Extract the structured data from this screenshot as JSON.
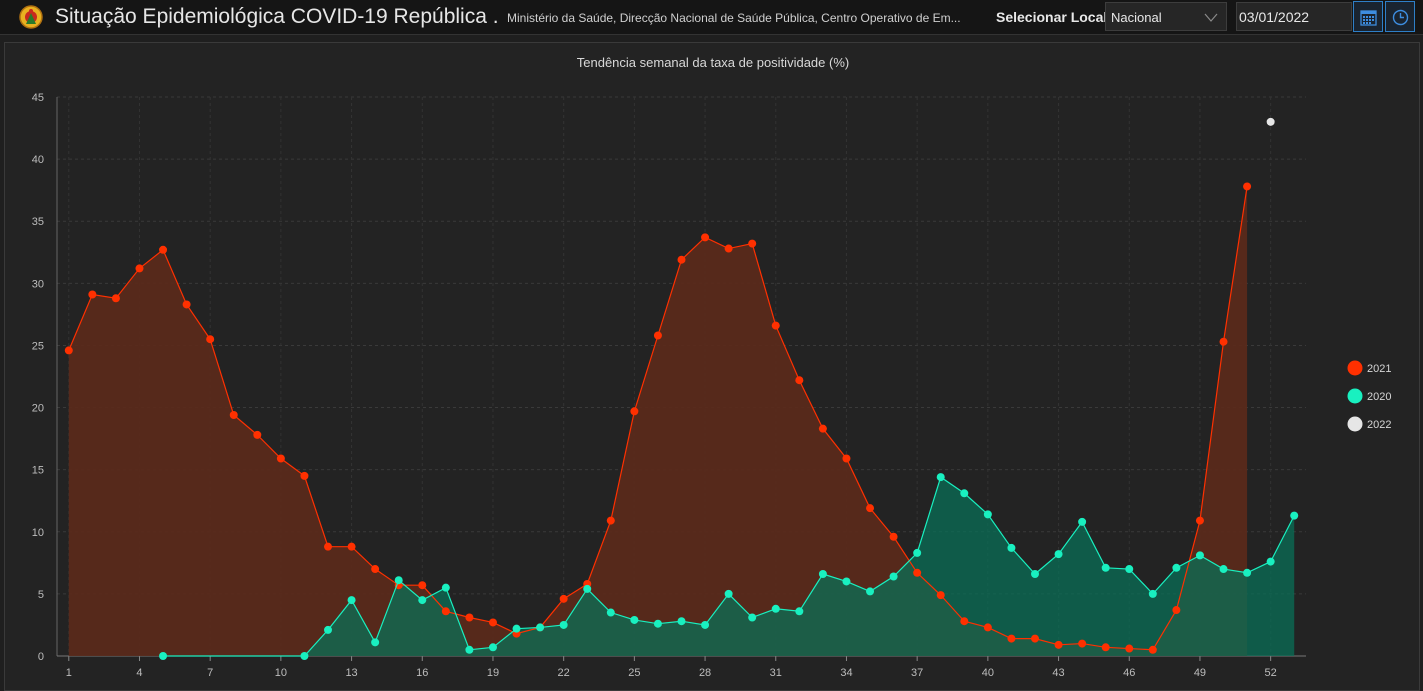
{
  "header": {
    "title": "Situação Epidemiológica COVID-19 República ...",
    "subtitle": "Ministério da Saúde, Direcção Nacional de Saúde Pública, Centro Operativo de Em...",
    "select_label": "Selecionar Local",
    "select_value": "Nacional",
    "date_value": "03/01/2022",
    "calendar_icon": "calendar-icon",
    "clock_icon": "clock-icon"
  },
  "chart_data": {
    "type": "area",
    "title": "Tendência semanal da taxa de positividade (%)",
    "xlabel": "",
    "ylabel": "",
    "ylim": [
      0,
      45
    ],
    "xlim": [
      0.5,
      53.5
    ],
    "yticks": [
      0,
      5,
      10,
      15,
      20,
      25,
      30,
      35,
      40,
      45
    ],
    "xticks": [
      1,
      4,
      7,
      10,
      13,
      16,
      19,
      22,
      25,
      28,
      31,
      34,
      37,
      40,
      43,
      46,
      49,
      52
    ],
    "grid": true,
    "legend_position": "right",
    "series": [
      {
        "name": "2021",
        "color": "#ff3000",
        "fill": "#5a2a1b",
        "x": [
          1,
          2,
          3,
          4,
          5,
          6,
          7,
          8,
          9,
          10,
          11,
          12,
          13,
          14,
          15,
          16,
          17,
          18,
          19,
          20,
          21,
          22,
          23,
          24,
          25,
          26,
          27,
          28,
          29,
          30,
          31,
          32,
          33,
          34,
          35,
          36,
          37,
          38,
          39,
          40,
          41,
          42,
          43,
          44,
          45,
          46,
          47,
          48,
          49,
          50,
          51
        ],
        "values": [
          24.6,
          29.1,
          28.8,
          31.2,
          32.7,
          28.3,
          25.5,
          19.4,
          17.8,
          15.9,
          14.5,
          8.8,
          8.8,
          7.0,
          5.7,
          5.7,
          3.6,
          3.1,
          2.7,
          1.8,
          2.3,
          4.6,
          5.8,
          10.9,
          19.7,
          25.8,
          31.9,
          33.7,
          32.8,
          33.2,
          26.6,
          22.2,
          18.3,
          15.9,
          11.9,
          9.6,
          6.7,
          4.9,
          2.8,
          2.3,
          1.4,
          1.4,
          0.9,
          1.0,
          0.7,
          0.6,
          0.5,
          3.7,
          10.9,
          25.3,
          37.8
        ]
      },
      {
        "name": "2020",
        "color": "#19f0c0",
        "fill": "#0a6f57",
        "x": [
          5,
          11,
          12,
          13,
          14,
          15,
          16,
          17,
          18,
          19,
          20,
          21,
          22,
          23,
          24,
          25,
          26,
          27,
          28,
          29,
          30,
          31,
          32,
          33,
          34,
          35,
          36,
          37,
          38,
          39,
          40,
          41,
          42,
          43,
          44,
          45,
          46,
          47,
          48,
          49,
          50,
          51,
          52,
          53
        ],
        "values": [
          0.0,
          0.0,
          2.1,
          4.5,
          1.1,
          6.1,
          4.5,
          5.5,
          0.5,
          0.7,
          2.2,
          2.3,
          2.5,
          5.4,
          3.5,
          2.9,
          2.6,
          2.8,
          2.5,
          5.0,
          3.1,
          3.8,
          3.6,
          6.6,
          6.0,
          5.2,
          6.4,
          8.3,
          14.4,
          13.1,
          11.4,
          8.7,
          6.6,
          8.2,
          10.8,
          7.1,
          7.0,
          5.0,
          7.1,
          8.1,
          7.0,
          6.7,
          7.6,
          11.3
        ]
      },
      {
        "name": "2022",
        "color": "#e6e6e6",
        "x": [
          52
        ],
        "values": [
          43.0
        ]
      }
    ]
  }
}
